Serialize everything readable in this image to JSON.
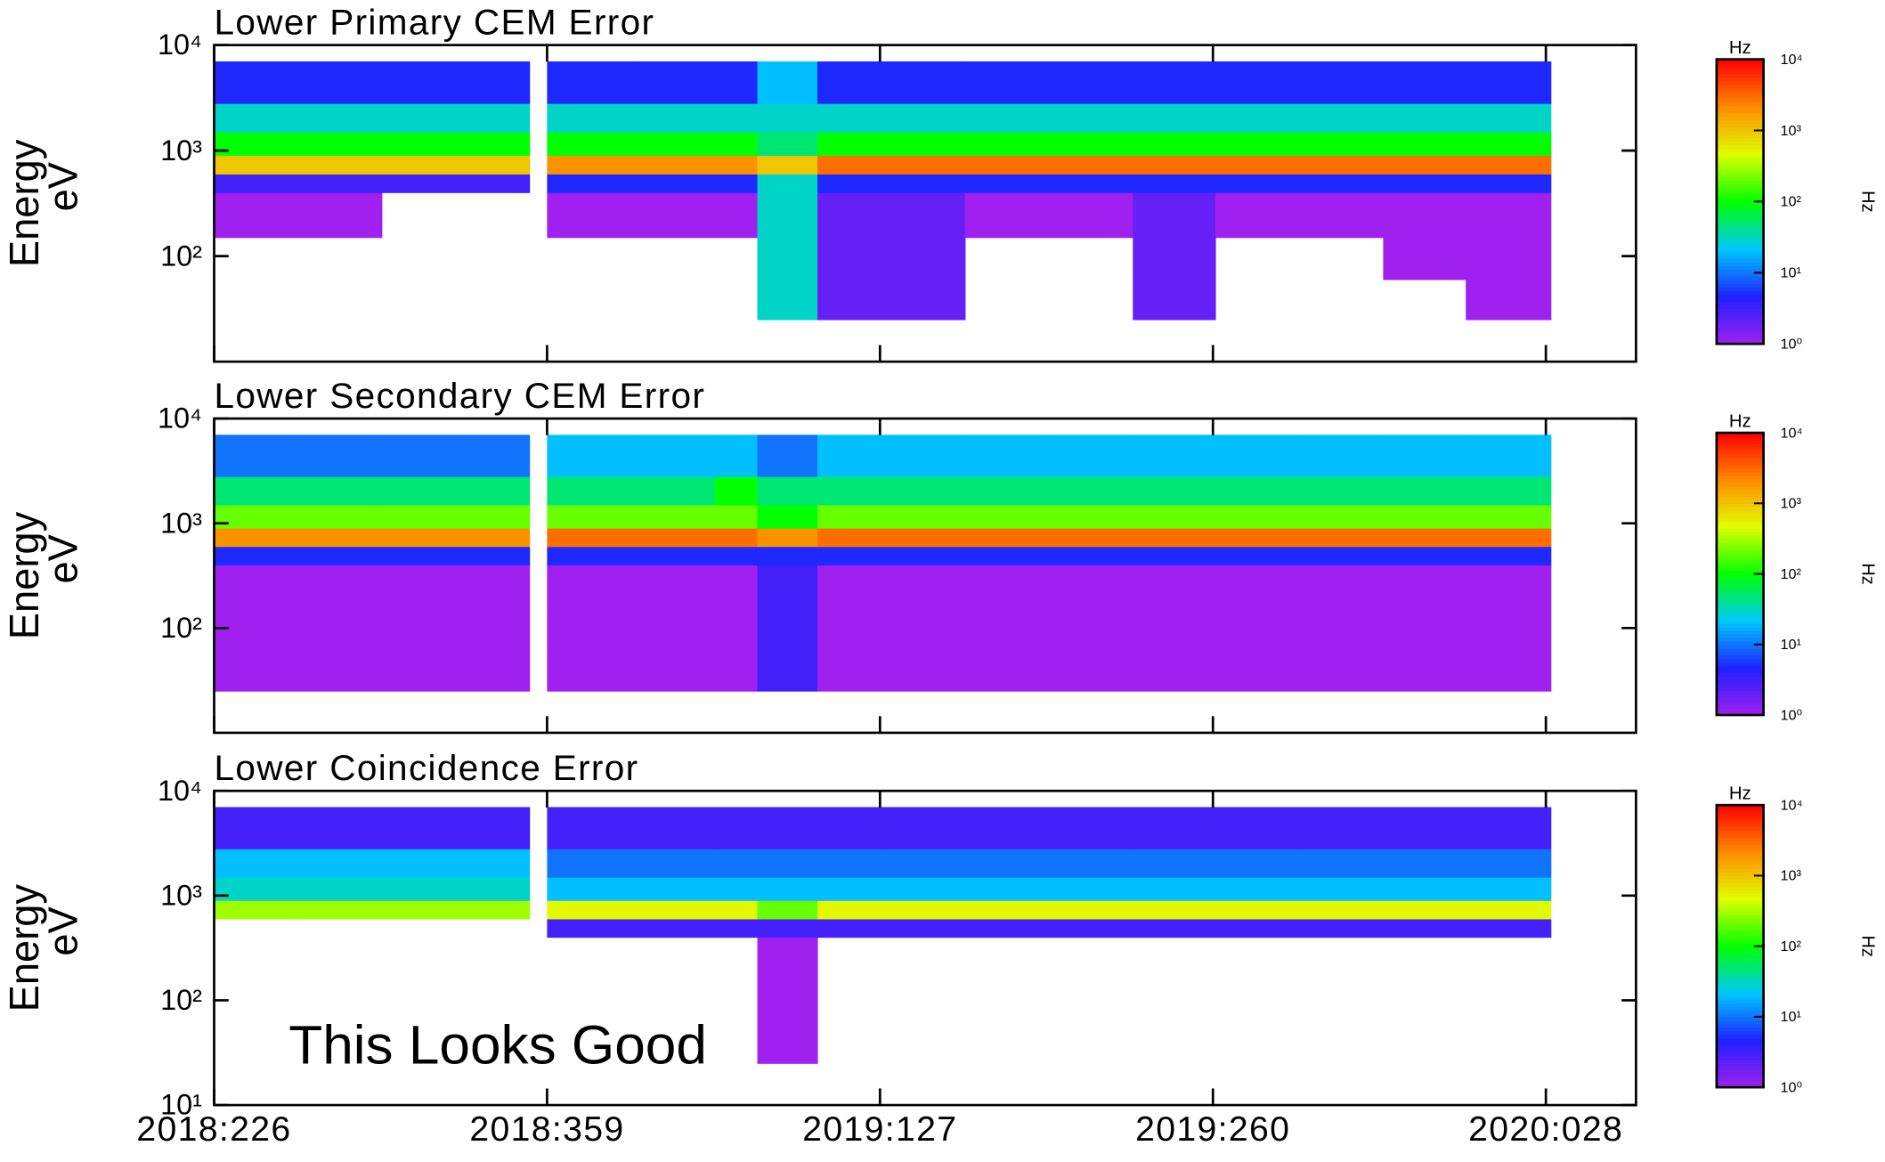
{
  "chart_data": [
    {
      "type": "heatmap",
      "title": "Lower Primary CEM Error",
      "ylabel": "Energy",
      "yunit": "eV",
      "log_y": true,
      "ylim": [
        10,
        10000
      ],
      "yticks": [
        {
          "value": 100,
          "label": "10²"
        },
        {
          "value": 1000,
          "label": "10³"
        },
        {
          "value": 10000,
          "label": "10⁴"
        }
      ],
      "xlim": [
        0,
        568
      ],
      "xticks": [
        0,
        133,
        266,
        399,
        532
      ],
      "show_xtick_labels": false,
      "x_edges": [
        0,
        33,
        67,
        100,
        126,
        133,
        167,
        200,
        217,
        241,
        267,
        300,
        333,
        367,
        400,
        433,
        467,
        500,
        534
      ],
      "y_edges": [
        25,
        60,
        150,
        400,
        600,
        900,
        1500,
        2800,
        7000
      ],
      "z": [
        [
          null,
          null,
          null,
          null,
          null,
          null,
          null,
          null,
          30,
          2,
          2,
          null,
          null,
          2,
          null,
          null,
          null,
          1
        ],
        [
          null,
          null,
          null,
          null,
          null,
          null,
          null,
          null,
          30,
          2,
          2,
          null,
          null,
          2,
          null,
          null,
          1,
          1
        ],
        [
          1,
          1,
          null,
          null,
          null,
          1,
          1,
          1,
          30,
          2,
          2,
          1,
          1,
          2,
          1,
          1,
          1,
          1
        ],
        [
          3,
          3,
          3,
          3,
          null,
          5,
          5,
          5,
          30,
          5,
          5,
          5,
          5,
          5,
          5,
          5,
          5,
          5
        ],
        [
          1000,
          1000,
          1000,
          1000,
          null,
          2000,
          2000,
          2000,
          1000,
          3000,
          3000,
          3000,
          3000,
          3000,
          3000,
          3000,
          3000,
          3000
        ],
        [
          100,
          100,
          100,
          100,
          null,
          100,
          100,
          100,
          50,
          100,
          100,
          100,
          100,
          100,
          100,
          100,
          100,
          100
        ],
        [
          30,
          30,
          30,
          30,
          null,
          30,
          30,
          30,
          30,
          30,
          30,
          30,
          30,
          30,
          30,
          30,
          30,
          30
        ],
        [
          5,
          5,
          5,
          5,
          null,
          5,
          5,
          5,
          20,
          5,
          5,
          5,
          5,
          5,
          5,
          5,
          5,
          5
        ]
      ],
      "colorbar": {
        "label": "Hz",
        "lim": [
          1,
          10000
        ],
        "ticks": [
          {
            "value": 1,
            "label": "10⁰"
          },
          {
            "value": 10,
            "label": "10¹"
          },
          {
            "value": 100,
            "label": "10²"
          },
          {
            "value": 1000,
            "label": "10³"
          },
          {
            "value": 10000,
            "label": "10⁴"
          }
        ],
        "colors": [
          "#a020f0",
          "#2020ff",
          "#00c8ff",
          "#00ff00",
          "#e0ff00",
          "#ff8c00",
          "#ff0000"
        ]
      }
    },
    {
      "type": "heatmap",
      "title": "Lower Secondary CEM Error",
      "ylabel": "Energy",
      "yunit": "eV",
      "log_y": true,
      "ylim": [
        10,
        10000
      ],
      "yticks": [
        {
          "value": 100,
          "label": "10²"
        },
        {
          "value": 1000,
          "label": "10³"
        },
        {
          "value": 10000,
          "label": "10⁴"
        }
      ],
      "xlim": [
        0,
        568
      ],
      "xticks": [
        0,
        133,
        266,
        399,
        532
      ],
      "show_xtick_labels": false,
      "x_edges": [
        0,
        33,
        67,
        100,
        126,
        133,
        167,
        200,
        217,
        241,
        267,
        300,
        333,
        367,
        400,
        433,
        467,
        500,
        534
      ],
      "y_edges": [
        25,
        60,
        150,
        400,
        600,
        900,
        1500,
        2800,
        7000
      ],
      "z": [
        [
          1,
          1,
          1,
          1,
          null,
          1,
          1,
          1,
          3,
          1,
          1,
          1,
          1,
          1,
          1,
          1,
          1,
          1
        ],
        [
          1,
          1,
          1,
          1,
          null,
          1,
          1,
          1,
          3,
          1,
          1,
          1,
          1,
          1,
          1,
          1,
          1,
          1
        ],
        [
          1,
          1,
          1,
          1,
          null,
          1,
          1,
          1,
          3,
          1,
          1,
          1,
          1,
          1,
          1,
          1,
          1,
          1
        ],
        [
          5,
          5,
          5,
          5,
          null,
          5,
          5,
          5,
          5,
          5,
          5,
          5,
          5,
          5,
          5,
          5,
          5,
          5
        ],
        [
          2000,
          2000,
          2000,
          2000,
          null,
          3000,
          3000,
          3000,
          2000,
          3000,
          3000,
          3000,
          3000,
          3000,
          3000,
          3000,
          3000,
          3000
        ],
        [
          200,
          200,
          200,
          200,
          null,
          200,
          200,
          200,
          100,
          200,
          200,
          200,
          200,
          200,
          200,
          200,
          200,
          200
        ],
        [
          50,
          50,
          50,
          50,
          null,
          50,
          50,
          100,
          50,
          50,
          50,
          50,
          50,
          50,
          50,
          50,
          50,
          50
        ],
        [
          10,
          10,
          10,
          10,
          null,
          20,
          20,
          20,
          10,
          20,
          20,
          20,
          20,
          20,
          20,
          20,
          20,
          20
        ]
      ],
      "colorbar": {
        "label": "Hz",
        "lim": [
          1,
          10000
        ],
        "ticks": [
          {
            "value": 1,
            "label": "10⁰"
          },
          {
            "value": 10,
            "label": "10¹"
          },
          {
            "value": 100,
            "label": "10²"
          },
          {
            "value": 1000,
            "label": "10³"
          },
          {
            "value": 10000,
            "label": "10⁴"
          }
        ],
        "colors": [
          "#a020f0",
          "#2020ff",
          "#00c8ff",
          "#00ff00",
          "#e0ff00",
          "#ff8c00",
          "#ff0000"
        ]
      }
    },
    {
      "type": "heatmap",
      "title": "Lower Coincidence Error",
      "ylabel": "Energy",
      "yunit": "eV",
      "log_y": true,
      "ylim": [
        10,
        10000
      ],
      "yticks": [
        {
          "value": 10,
          "label": "10¹"
        },
        {
          "value": 100,
          "label": "10²"
        },
        {
          "value": 1000,
          "label": "10³"
        },
        {
          "value": 10000,
          "label": "10⁴"
        }
      ],
      "xlim": [
        0,
        568
      ],
      "xticks": [
        {
          "value": 0,
          "label": "2018:226"
        },
        {
          "value": 133,
          "label": "2018:359"
        },
        {
          "value": 266,
          "label": "2019:127"
        },
        {
          "value": 399,
          "label": "2019:260"
        },
        {
          "value": 532,
          "label": "2020:028"
        }
      ],
      "show_xtick_labels": true,
      "x_edges": [
        0,
        33,
        67,
        100,
        126,
        133,
        167,
        200,
        217,
        241,
        267,
        300,
        333,
        367,
        400,
        433,
        467,
        500,
        534
      ],
      "y_edges": [
        25,
        60,
        150,
        400,
        600,
        900,
        1500,
        2800,
        7000
      ],
      "z": [
        [
          null,
          null,
          null,
          null,
          null,
          null,
          null,
          null,
          1,
          null,
          null,
          null,
          null,
          null,
          null,
          null,
          null,
          null
        ],
        [
          null,
          null,
          null,
          null,
          null,
          null,
          null,
          null,
          1,
          null,
          null,
          null,
          null,
          null,
          null,
          null,
          null,
          null
        ],
        [
          null,
          null,
          null,
          null,
          null,
          null,
          null,
          null,
          1,
          null,
          null,
          null,
          null,
          null,
          null,
          null,
          null,
          null
        ],
        [
          null,
          null,
          null,
          null,
          null,
          3,
          3,
          3,
          3,
          3,
          3,
          3,
          3,
          3,
          3,
          3,
          3,
          3
        ],
        [
          300,
          300,
          300,
          300,
          null,
          500,
          500,
          500,
          200,
          500,
          500,
          500,
          500,
          500,
          500,
          500,
          500,
          500
        ],
        [
          30,
          30,
          30,
          30,
          null,
          20,
          20,
          20,
          20,
          20,
          20,
          20,
          20,
          20,
          20,
          20,
          20,
          20
        ],
        [
          20,
          20,
          20,
          20,
          null,
          10,
          10,
          10,
          10,
          10,
          10,
          10,
          10,
          10,
          10,
          10,
          10,
          10
        ],
        [
          3,
          3,
          3,
          3,
          null,
          3,
          3,
          3,
          3,
          3,
          3,
          3,
          3,
          3,
          3,
          3,
          3,
          3
        ]
      ],
      "annotation": "This Looks Good",
      "annotation_color": "#1a8a1a",
      "colorbar": {
        "label": "Hz",
        "lim": [
          1,
          10000
        ],
        "ticks": [
          {
            "value": 1,
            "label": "10⁰"
          },
          {
            "value": 10,
            "label": "10¹"
          },
          {
            "value": 100,
            "label": "10²"
          },
          {
            "value": 1000,
            "label": "10³"
          },
          {
            "value": 10000,
            "label": "10⁴"
          }
        ],
        "colors": [
          "#a020f0",
          "#2020ff",
          "#00c8ff",
          "#00ff00",
          "#e0ff00",
          "#ff8c00",
          "#ff0000"
        ]
      }
    }
  ]
}
